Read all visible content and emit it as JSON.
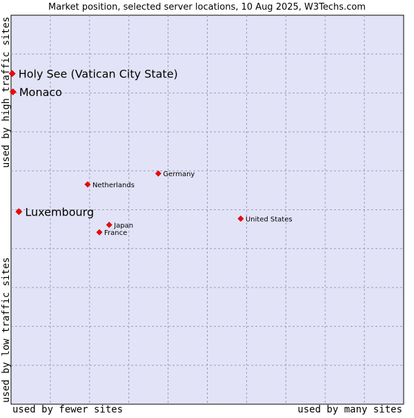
{
  "chart_data": {
    "type": "scatter",
    "title": "Market position, selected server locations, 10 Aug 2025, W3Techs.com",
    "xlabel_low": "used by fewer sites",
    "xlabel_high": "used by many sites",
    "ylabel_low": "used by low traffic sites",
    "ylabel_high": "used by high traffic sites",
    "xlim": [
      0,
      100
    ],
    "ylim": [
      0,
      100
    ],
    "grid": true,
    "colors": {
      "plot_bg": "#e3e3f7",
      "point": "#ff0000",
      "grid": "#9a9ab8"
    },
    "points": [
      {
        "name": "Holy See (Vatican City State)",
        "x": 0.3,
        "y": 85.0,
        "highlight": true
      },
      {
        "name": "Monaco",
        "x": 0.5,
        "y": 80.3,
        "highlight": true
      },
      {
        "name": "Luxembourg",
        "x": 2.0,
        "y": 49.5,
        "highlight": true
      },
      {
        "name": "Netherlands",
        "x": 19.5,
        "y": 56.5,
        "highlight": false
      },
      {
        "name": "Germany",
        "x": 37.5,
        "y": 59.3,
        "highlight": false
      },
      {
        "name": "United States",
        "x": 58.5,
        "y": 47.7,
        "highlight": false
      },
      {
        "name": "Japan",
        "x": 25.0,
        "y": 46.1,
        "highlight": false
      },
      {
        "name": "France",
        "x": 22.5,
        "y": 44.2,
        "highlight": false
      }
    ]
  }
}
